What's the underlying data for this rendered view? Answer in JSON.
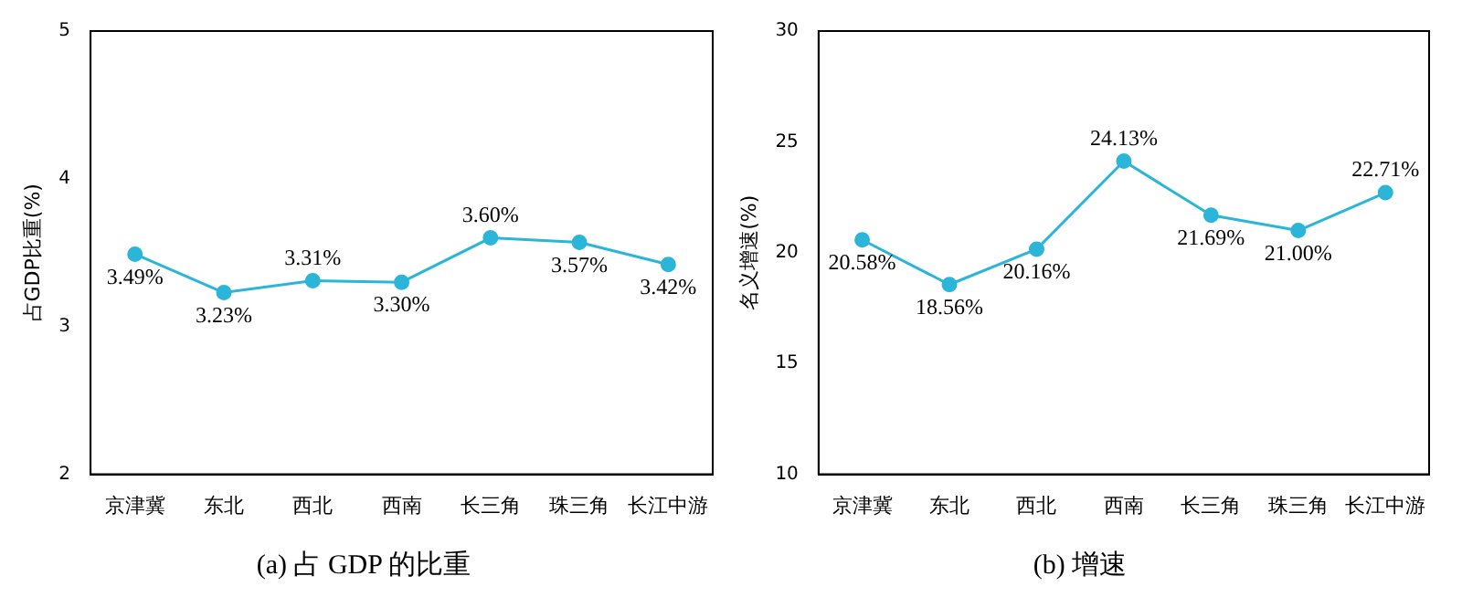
{
  "chart_data": [
    {
      "type": "line",
      "title": "(a) 占 GDP 的比重",
      "ylabel": "占GDP比重(%)",
      "categories": [
        "京津冀",
        "东北",
        "西北",
        "西南",
        "长三角",
        "珠三角",
        "长江中游"
      ],
      "series": [
        {
          "color": "#2bb5d8",
          "values": [
            3.49,
            3.23,
            3.31,
            3.3,
            3.6,
            3.57,
            3.42
          ],
          "value_labels": [
            "3.49%",
            "3.23%",
            "3.31%",
            "3.30%",
            "3.60%",
            "3.57%",
            "3.42%"
          ]
        }
      ],
      "ylim": [
        2,
        5
      ],
      "yticks": [
        2,
        3,
        4,
        5
      ],
      "grid": false,
      "legend": false,
      "marker": "circle",
      "line_style": "solid"
    },
    {
      "type": "line",
      "title": "(b) 增速",
      "ylabel": "名义增速(%)",
      "categories": [
        "京津冀",
        "东北",
        "西北",
        "西南",
        "长三角",
        "珠三角",
        "长江中游"
      ],
      "series": [
        {
          "color": "#2bb5d8",
          "values": [
            20.58,
            18.56,
            20.16,
            24.13,
            21.69,
            21.0,
            22.71
          ],
          "value_labels": [
            "20.58%",
            "18.56%",
            "20.16%",
            "24.13%",
            "21.69%",
            "21.00%",
            "22.71%"
          ]
        }
      ],
      "ylim": [
        10,
        30
      ],
      "yticks": [
        10,
        15,
        20,
        25,
        30
      ],
      "grid": false,
      "legend": false,
      "marker": "circle",
      "line_style": "solid"
    }
  ]
}
